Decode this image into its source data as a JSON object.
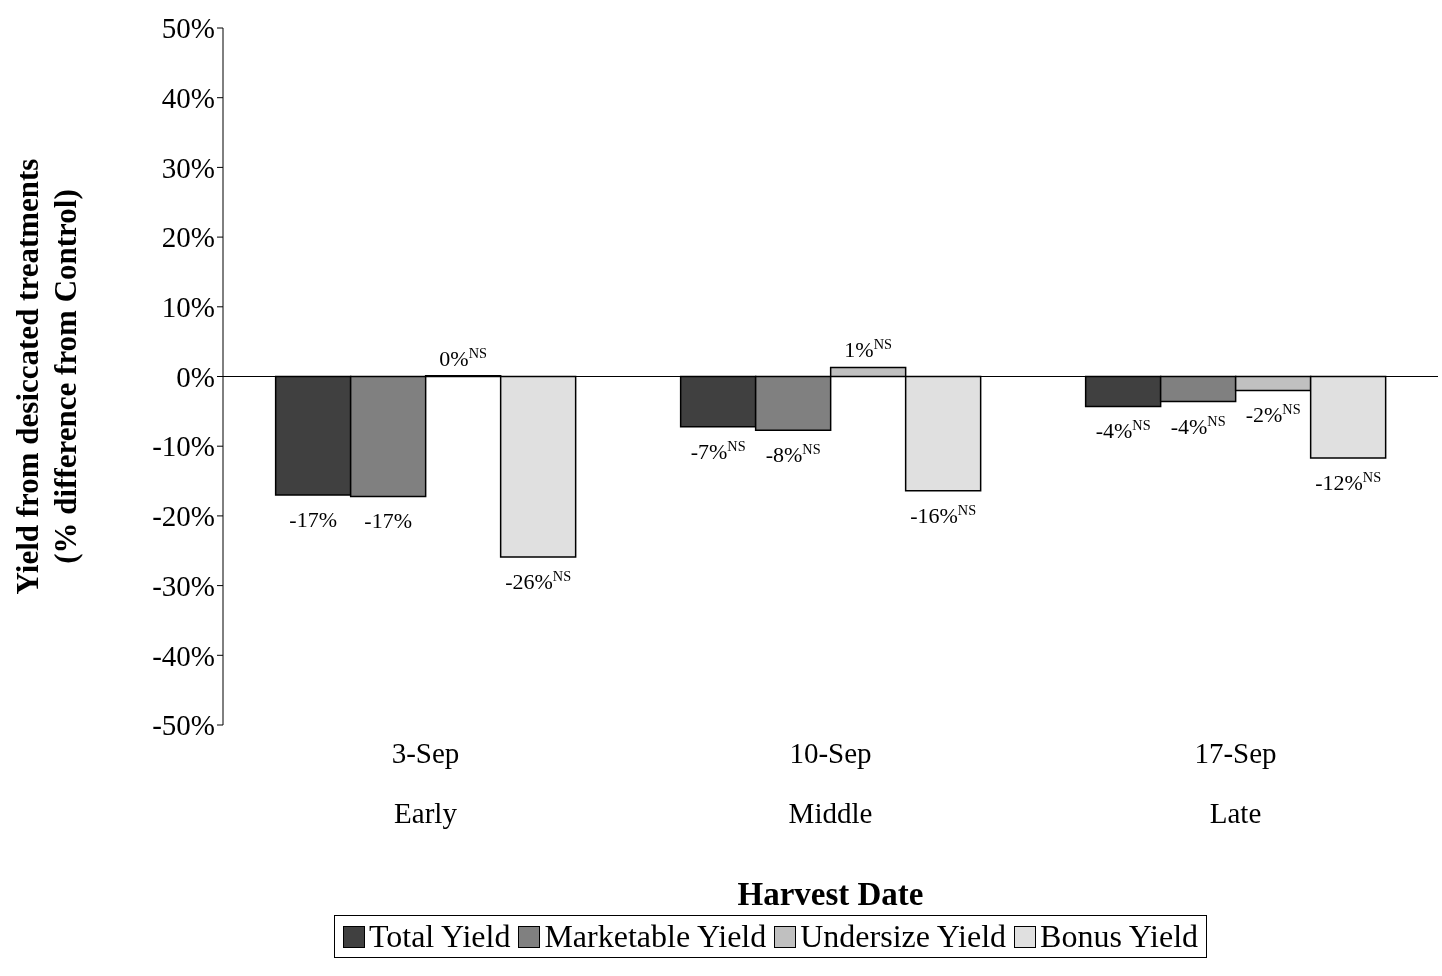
{
  "chart_data": {
    "type": "bar",
    "xlabel": "Harvest Date",
    "ylabel": "Yield from desiccated treatments\n(% difference from Control)",
    "categories": [
      "3-Sep\nEarly",
      "10-Sep\nMiddle",
      "17-Sep\nLate"
    ],
    "series": [
      {
        "name": "Total Yield",
        "color": "#404040",
        "values": [
          -17.0,
          -7.2,
          -4.3
        ],
        "value_labels": [
          "-17%",
          "-7%$^{NS}$",
          "-4%$^{NS}$"
        ]
      },
      {
        "name": "Marketable Yield",
        "color": "#808080",
        "values": [
          -17.2,
          -7.7,
          -3.6
        ],
        "value_labels": [
          "-17%",
          "-8%$^{NS}$",
          "-4%$^{NS}$"
        ]
      },
      {
        "name": "Undersize Yield",
        "color": "#c0c0c0",
        "values": [
          0.1,
          1.3,
          -2.0
        ],
        "value_labels": [
          "0%$^{NS}$",
          "1%$^{NS}$",
          "-2%$^{NS}$"
        ]
      },
      {
        "name": "Bonus Yield",
        "color": "#e0e0e0",
        "values": [
          -25.9,
          -16.4,
          -11.7
        ],
        "value_labels": [
          "-26%$^{NS}$",
          "-16%$^{NS}$",
          "-12%$^{NS}$"
        ]
      }
    ],
    "ylim": [
      -50,
      50
    ],
    "yticks": [
      {
        "value": -50,
        "label": "-50%"
      },
      {
        "value": -40,
        "label": "-40%"
      },
      {
        "value": -30,
        "label": "-30%"
      },
      {
        "value": -20,
        "label": "-20%"
      },
      {
        "value": -10,
        "label": "-10%"
      },
      {
        "value": 0,
        "label": "0%"
      },
      {
        "value": 10,
        "label": "10%"
      },
      {
        "value": 20,
        "label": "20%"
      },
      {
        "value": 30,
        "label": "30%"
      },
      {
        "value": 40,
        "label": "40%"
      },
      {
        "value": 50,
        "label": "50%"
      }
    ],
    "ref_lines": [
      {
        "axis": "y",
        "value": 0,
        "color": "#000000"
      }
    ],
    "grid": false,
    "legend": "bottom"
  }
}
